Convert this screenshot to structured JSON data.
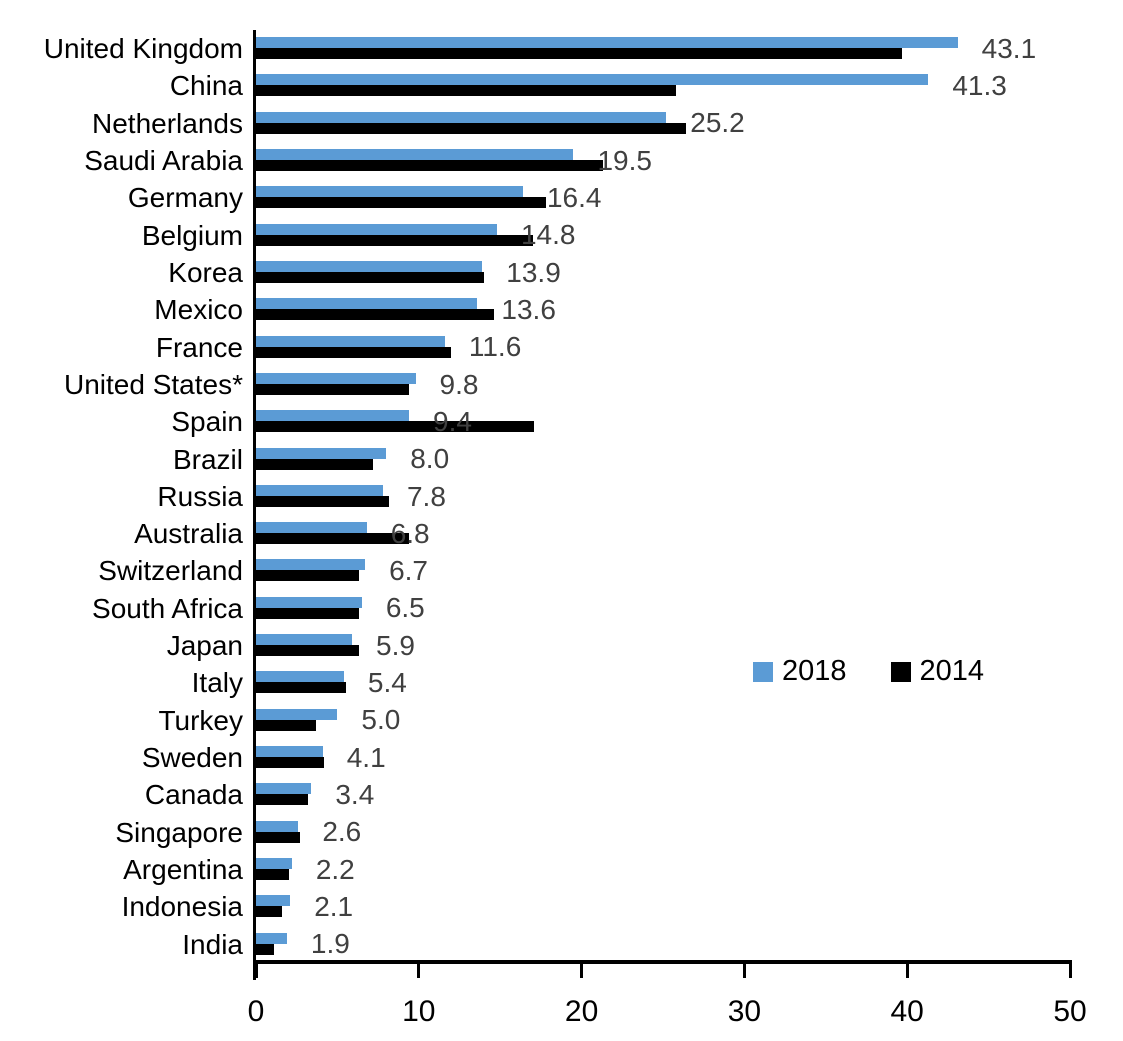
{
  "chart_data": {
    "type": "bar",
    "orientation": "horizontal",
    "title": "",
    "xlabel": "",
    "ylabel": "",
    "xlim": [
      0,
      50
    ],
    "x_ticks": [
      "0",
      "10",
      "20",
      "30",
      "40",
      "50"
    ],
    "grid": false,
    "legend_position": "middle-right",
    "categories": [
      "United Kingdom",
      "China",
      "Netherlands",
      "Saudi Arabia",
      "Germany",
      "Belgium",
      "Korea",
      "Mexico",
      "France",
      "United States*",
      "Spain",
      "Brazil",
      "Russia",
      "Australia",
      "Switzerland",
      "South Africa",
      "Japan",
      "Italy",
      "Turkey",
      "Sweden",
      "Canada",
      "Singapore",
      "Argentina",
      "Indonesia",
      "India"
    ],
    "series": [
      {
        "name": "2018",
        "color": "#5B9BD5",
        "values": [
          43.1,
          41.3,
          25.2,
          19.5,
          16.4,
          14.8,
          13.9,
          13.6,
          11.6,
          9.8,
          9.4,
          8.0,
          7.8,
          6.8,
          6.7,
          6.5,
          5.9,
          5.4,
          5.0,
          4.1,
          3.4,
          2.6,
          2.2,
          2.1,
          1.9
        ],
        "data_labels": [
          "43.1",
          "41.3",
          "25.2",
          "19.5",
          "16.4",
          "14.8",
          "13.9",
          "13.6",
          "11.6",
          "9.8",
          "9.4",
          "8.0",
          "7.8",
          "6.8",
          "6.7",
          "6.5",
          "5.9",
          "5.4",
          "5.0",
          "4.1",
          "3.4",
          "2.6",
          "2.2",
          "2.1",
          "1.9"
        ]
      },
      {
        "name": "2014",
        "color": "#000000",
        "values": [
          39.7,
          25.8,
          26.4,
          21.3,
          17.8,
          17.0,
          14.0,
          14.6,
          12.0,
          9.4,
          17.1,
          7.2,
          8.2,
          9.4,
          6.3,
          6.3,
          6.3,
          5.5,
          3.7,
          4.2,
          3.2,
          2.7,
          2.0,
          1.6,
          1.1
        ]
      }
    ]
  },
  "legend": {
    "items": [
      {
        "label": "2018",
        "color": "#5B9BD5"
      },
      {
        "label": "2014",
        "color": "#000000"
      }
    ]
  },
  "colors": {
    "bar_2018": "#5B9BD5",
    "bar_2014": "#000000",
    "value_label": "#404040",
    "axis": "#000000",
    "background": "#FFFFFF"
  }
}
